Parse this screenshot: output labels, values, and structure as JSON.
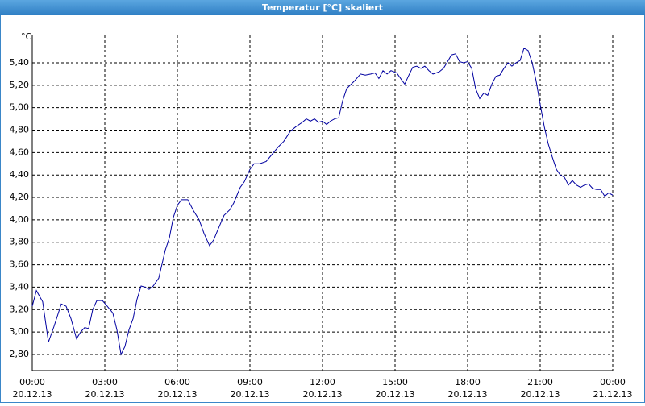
{
  "chart_data": {
    "type": "line",
    "title": "Temperatur [°C] skaliert",
    "ylabel": "°C",
    "x": [
      0,
      0.17,
      0.43,
      0.67,
      0.9,
      1.2,
      1.4,
      1.6,
      1.83,
      2,
      2.17,
      2.33,
      2.5,
      2.67,
      2.9,
      3.1,
      3.33,
      3.5,
      3.67,
      3.83,
      4,
      4.17,
      4.33,
      4.5,
      4.67,
      4.83,
      5,
      5.23,
      5.5,
      5.67,
      5.83,
      6,
      6.17,
      6.43,
      6.67,
      6.9,
      7.1,
      7.33,
      7.5,
      7.67,
      7.93,
      8.17,
      8.33,
      8.6,
      8.77,
      9,
      9.17,
      9.4,
      9.67,
      9.9,
      10.17,
      10.4,
      10.67,
      10.9,
      11.17,
      11.33,
      11.5,
      11.67,
      11.83,
      12,
      12.17,
      12.33,
      12.5,
      12.67,
      12.83,
      13,
      13.33,
      13.57,
      13.77,
      14,
      14.17,
      14.33,
      14.5,
      14.67,
      14.83,
      15.07,
      15.23,
      15.4,
      15.57,
      15.73,
      15.9,
      16.07,
      16.23,
      16.4,
      16.57,
      16.83,
      17,
      17.17,
      17.33,
      17.5,
      17.67,
      17.83,
      18,
      18.17,
      18.33,
      18.5,
      18.67,
      18.83,
      19,
      19.17,
      19.33,
      19.5,
      19.67,
      19.83,
      20,
      20.17,
      20.33,
      20.5,
      20.67,
      20.83,
      21,
      21.17,
      21.33,
      21.5,
      21.67,
      21.83,
      22,
      22.17,
      22.33,
      22.5,
      22.67,
      22.83,
      23,
      23.17,
      23.33,
      23.5,
      23.67,
      23.83,
      24
    ],
    "series": [
      {
        "color": "#0000a0",
        "values": [
          3.23,
          3.37,
          3.27,
          2.91,
          3.05,
          3.25,
          3.23,
          3.12,
          2.94,
          3.0,
          3.04,
          3.03,
          3.2,
          3.28,
          3.28,
          3.23,
          3.17,
          3.02,
          2.8,
          2.87,
          3.02,
          3.12,
          3.29,
          3.41,
          3.4,
          3.38,
          3.41,
          3.48,
          3.73,
          3.84,
          4.02,
          4.13,
          4.18,
          4.18,
          4.08,
          4.0,
          3.88,
          3.77,
          3.82,
          3.91,
          4.04,
          4.09,
          4.15,
          4.29,
          4.34,
          4.45,
          4.5,
          4.5,
          4.52,
          4.58,
          4.65,
          4.7,
          4.79,
          4.83,
          4.87,
          4.9,
          4.88,
          4.9,
          4.87,
          4.88,
          4.85,
          4.88,
          4.9,
          4.91,
          5.06,
          5.17,
          5.24,
          5.3,
          5.29,
          5.3,
          5.31,
          5.26,
          5.33,
          5.3,
          5.33,
          5.31,
          5.26,
          5.21,
          5.29,
          5.36,
          5.37,
          5.35,
          5.37,
          5.33,
          5.3,
          5.32,
          5.35,
          5.41,
          5.47,
          5.48,
          5.41,
          5.4,
          5.41,
          5.35,
          5.17,
          5.08,
          5.13,
          5.11,
          5.21,
          5.28,
          5.29,
          5.35,
          5.4,
          5.37,
          5.4,
          5.42,
          5.53,
          5.51,
          5.4,
          5.24,
          5.03,
          4.83,
          4.68,
          4.56,
          4.45,
          4.4,
          4.38,
          4.31,
          4.35,
          4.31,
          4.29,
          4.31,
          4.32,
          4.28,
          4.27,
          4.27,
          4.21,
          4.24,
          4.22
        ]
      }
    ],
    "xlim": [
      0,
      24
    ],
    "xticks": [
      {
        "value": 0,
        "label": "00:00"
      },
      {
        "value": 3,
        "label": "03:00"
      },
      {
        "value": 6,
        "label": "06:00"
      },
      {
        "value": 9,
        "label": "09:00"
      },
      {
        "value": 12,
        "label": "12:00"
      },
      {
        "value": 15,
        "label": "15:00"
      },
      {
        "value": 18,
        "label": "18:00"
      },
      {
        "value": 21,
        "label": "21:00"
      },
      {
        "value": 24,
        "label": "00:00"
      }
    ],
    "xtick_dates": [
      "20.12.13",
      "20.12.13",
      "20.12.13",
      "20.12.13",
      "20.12.13",
      "20.12.13",
      "20.12.13",
      "20.12.13",
      "21.12.13"
    ],
    "ylim": [
      2.656,
      5.644
    ],
    "yticks": [
      {
        "value": 2.8,
        "label": "2,80"
      },
      {
        "value": 3.0,
        "label": "3,00"
      },
      {
        "value": 3.2,
        "label": "3,20"
      },
      {
        "value": 3.4,
        "label": "3,40"
      },
      {
        "value": 3.6,
        "label": "3,60"
      },
      {
        "value": 3.8,
        "label": "3,80"
      },
      {
        "value": 4.0,
        "label": "4,00"
      },
      {
        "value": 4.2,
        "label": "4,20"
      },
      {
        "value": 4.4,
        "label": "4,40"
      },
      {
        "value": 4.6,
        "label": "4,60"
      },
      {
        "value": 4.8,
        "label": "4,80"
      },
      {
        "value": 5.0,
        "label": "5,00"
      },
      {
        "value": 5.2,
        "label": "5,20"
      },
      {
        "value": 5.4,
        "label": "5,40"
      }
    ],
    "grid": true
  }
}
